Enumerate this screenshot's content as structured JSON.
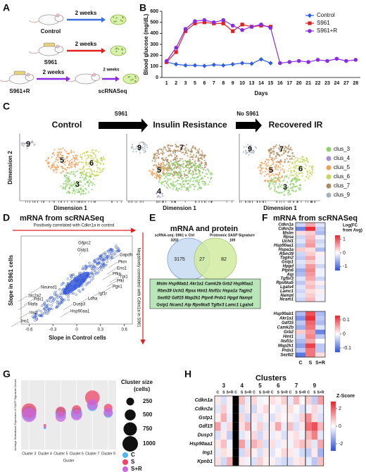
{
  "panel_labels": [
    "A",
    "B",
    "C",
    "D",
    "E",
    "F",
    "G",
    "H"
  ],
  "a": {
    "groups": [
      "Control",
      "S961",
      "S961+R"
    ],
    "arrows": [
      "2 weeks",
      "2 weeks",
      "2 weeks",
      "2 weeks"
    ],
    "endpoint": "scRNASeq"
  },
  "b": {
    "type": "line",
    "y_label": "Blood glucose (mg/dL)",
    "x_label": "Days",
    "categories": [
      "1",
      "2",
      "3",
      "5",
      "6",
      "7",
      "8",
      "9",
      "10",
      "13",
      "14",
      "15",
      "16",
      "17",
      "20",
      "21",
      "22",
      "23",
      "24",
      "27",
      "28"
    ],
    "ylim": [
      0,
      600
    ],
    "yticks": [
      0,
      100,
      200,
      300,
      400,
      500,
      600
    ],
    "legend": "upper right",
    "series": [
      {
        "name": "Control",
        "color": "#2f5fe0",
        "marker": "diamond",
        "values": [
          140,
          120,
          110,
          110,
          105,
          115,
          110,
          120,
          130,
          125,
          165,
          130,
          null,
          null,
          null,
          null,
          null,
          null,
          null,
          null,
          null
        ]
      },
      {
        "name": "S961",
        "color": "#e02020",
        "marker": "square",
        "values": [
          140,
          230,
          420,
          490,
          500,
          490,
          490,
          420,
          480,
          460,
          470,
          460,
          null,
          null,
          null,
          null,
          null,
          null,
          null,
          null,
          null
        ]
      },
      {
        "name": "S961+R",
        "color": "#8a2be2",
        "marker": "circle",
        "values": [
          150,
          270,
          440,
          510,
          520,
          500,
          520,
          470,
          430,
          460,
          480,
          450,
          130,
          140,
          150,
          140,
          160,
          150,
          170,
          150,
          160
        ]
      }
    ]
  },
  "c": {
    "titles": [
      "Control",
      "Insulin Resistance",
      "Recovered IR"
    ],
    "arrows": [
      "S961",
      "No S961"
    ],
    "y_label": "Dimension 2",
    "x_label": "Dimension 1",
    "cluster_labels": [
      [
        "9",
        "5",
        "6",
        "3"
      ],
      [
        "9",
        "7",
        "5",
        "4"
      ],
      [
        "9",
        "7",
        "5",
        "6",
        "3"
      ]
    ],
    "legend": [
      {
        "name": "clus_3",
        "color": "#8fd16a"
      },
      {
        "name": "clus_4",
        "color": "#a58fd8"
      },
      {
        "name": "clus_5",
        "color": "#f0a05a"
      },
      {
        "name": "clus_6",
        "color": "#c9d45a"
      },
      {
        "name": "clus_7",
        "color": "#b08a5c"
      },
      {
        "name": "clus_9",
        "color": "#a6b0ba"
      }
    ]
  },
  "d": {
    "title": "mRNA from scRNASeq",
    "top_note": "Positively correlated with Cdkn1a in control",
    "side_note": "Negatively correlated with Cdkn1a in S961",
    "y_label": "Slope in S961 cells",
    "x_label": "Slope in Control cells",
    "xlim": [
      -0.7,
      0.7
    ],
    "xticks": [
      -0.6,
      -0.3,
      0,
      0.3,
      0.6
    ],
    "genes": [
      "G6pc2",
      "Gstp1",
      "Gapdh",
      "Pkm",
      "Eno1",
      "Pfkp",
      "Tpi1",
      "Pfkl",
      "Pgk1",
      "Igf1r",
      "Ldha",
      "Dusp3",
      "Hsp90aa1",
      "Neurod1",
      "Slc2a2",
      "Pdx1",
      "Mafa",
      "Ins2",
      "Ins1"
    ]
  },
  "e": {
    "title": "mRNA and protein",
    "left_set": "scRNA-seq: S961 v. Ctrl",
    "left_total": 3202,
    "right_set": "Proteomic SASP Signature",
    "right_total": 109,
    "left_only": 3175,
    "overlap": 27,
    "right_only": 82,
    "gene_lines": [
      "Mslm Hsp90ab1 Akr1a1 Camk2b Grb2 Hsp90aa1",
      "Rbm39 Uchl1 Rpsa Hint1 Nsfl1c Hspa1a Tagln2",
      "Sez6l2 Gdf15 Map2k1 Ptpn6 Prdx1 Hpgd Nampt",
      "Gstp1 Ncam1 Aip Rps6ka5 Tgfbr3 Lamc1 Lgals4"
    ]
  },
  "f": {
    "title": "mRNA from scRNASeq",
    "legend_title": [
      "Log(FC",
      "from Avg)"
    ],
    "columns": [
      "C",
      "S",
      "S+R"
    ],
    "top": {
      "lim": [
        -1.3,
        1.3
      ],
      "ticks": [
        1,
        0,
        -1
      ],
      "genes": [
        "Cdkn1a",
        "Cdkn2a",
        "Mslm",
        "Rpsa",
        "Uchl1",
        "Hsp90aa1",
        "Hspa1a",
        "Rbm39",
        "Tagln2",
        "Gstp1",
        "Hpgd",
        "Ptpn6",
        "Aip",
        "Tgfbr3",
        "Rps6ka5",
        "Lgals4",
        "Lamc1",
        "Nampt",
        "Ncam1"
      ],
      "values": [
        [
          -0.3,
          0.5,
          -0.2
        ],
        [
          -0.9,
          1.2,
          -0.4
        ],
        [
          0.2,
          0.3,
          -0.5
        ],
        [
          -0.3,
          0.4,
          -0.1
        ],
        [
          -0.2,
          0.5,
          -0.3
        ],
        [
          -0.4,
          0.6,
          -0.2
        ],
        [
          0.3,
          0.2,
          -0.5
        ],
        [
          -0.3,
          0.3,
          0.1
        ],
        [
          -0.4,
          0.5,
          -0.1
        ],
        [
          -0.2,
          0.3,
          -0.1
        ],
        [
          -0.3,
          0.6,
          -0.3
        ],
        [
          -0.6,
          0.7,
          -0.1
        ],
        [
          -0.5,
          0.6,
          -0.1
        ],
        [
          -0.2,
          0.5,
          -0.3
        ],
        [
          -0.4,
          0.3,
          0.1
        ],
        [
          -0.2,
          0.4,
          -0.2
        ],
        [
          -0.3,
          0.2,
          0.1
        ],
        [
          -0.2,
          0.3,
          -0.1
        ],
        [
          -0.3,
          0.4,
          -0.1
        ]
      ]
    },
    "bottom": {
      "lim": [
        -0.13,
        0.13
      ],
      "ticks": [
        0.1,
        0,
        -0.1
      ],
      "genes": [
        "Hsp90ab1",
        "Akr1a1",
        "Gdf15",
        "Camk2b",
        "Grb2",
        "Hint1",
        "Nsfl1c",
        "Map2k1",
        "Prdx1",
        "Sez6l2"
      ],
      "values": [
        [
          -0.05,
          0.1,
          -0.05
        ],
        [
          -0.08,
          0.12,
          -0.04
        ],
        [
          -0.04,
          0.09,
          -0.05
        ],
        [
          -0.06,
          0.08,
          -0.02
        ],
        [
          0.03,
          0.06,
          -0.09
        ],
        [
          -0.03,
          0.07,
          -0.04
        ],
        [
          -0.05,
          0.05,
          0
        ],
        [
          -0.07,
          0.11,
          -0.04
        ],
        [
          -0.04,
          0.08,
          -0.04
        ],
        [
          -0.1,
          0.08,
          0.02
        ]
      ]
    }
  },
  "g": {
    "type": "bubble",
    "y_label": "Average Normalized Expression of SASP Signature Genes",
    "x_label": "Cluster",
    "categories": [
      "Cluster 3",
      "Cluster 4",
      "Cluster 5",
      "Cluster 6",
      "Cluster 7",
      "Cluster 9"
    ],
    "ylim": [
      0.2,
      1.0
    ],
    "size_legend_title": [
      "Cluster size",
      "(cells)"
    ],
    "size_legend": [
      250,
      500,
      750,
      1000
    ],
    "series": [
      {
        "name": "C",
        "color": "#4fb6ee",
        "values": [
          0.62,
          0.45,
          0.62,
          0.62,
          0.7,
          0.62
        ],
        "sizes": [
          900,
          30,
          500,
          550,
          400,
          350
        ]
      },
      {
        "name": "S",
        "color": "#ee4466",
        "values": [
          0.65,
          0.48,
          0.64,
          0.66,
          0.8,
          0.68
        ],
        "sizes": [
          900,
          30,
          400,
          350,
          900,
          300
        ]
      },
      {
        "name": "S+R",
        "color": "#cc66dd",
        "values": [
          0.6,
          0.46,
          0.58,
          0.6,
          0.72,
          0.63
        ],
        "sizes": [
          850,
          30,
          450,
          500,
          500,
          350
        ]
      }
    ]
  },
  "h": {
    "title": "Clusters",
    "clusters": [
      "3",
      "4",
      "5",
      "6",
      "7",
      "9"
    ],
    "columns": [
      "C",
      "S",
      "S+R"
    ],
    "legend_title": "Z-Score",
    "lim": [
      -2.8,
      2.8
    ],
    "ticks": [
      2,
      0,
      -2
    ],
    "genes": [
      "Cdkn1a",
      "Cdkn2a",
      "Gstp1",
      "Gdf15",
      "Dusp3",
      "Hsp90aa1",
      "Ing1",
      "Kpnb1"
    ],
    "values": [
      [
        0.3,
        -0.5,
        0.2,
        null,
        0.8,
        -0.3,
        0.5,
        -0.2,
        0.1,
        0.4,
        0.2,
        0.6,
        -0.3,
        0.9,
        0.1,
        0.6,
        -0.8,
        1.2
      ],
      [
        -0.4,
        0.6,
        -0.2,
        null,
        -0.5,
        0.3,
        -0.6,
        0.2,
        0.5,
        0.1,
        -0.3,
        0.2,
        0.4,
        0.1,
        -0.5,
        -0.2,
        0.5,
        -0.3
      ],
      [
        0.2,
        1.0,
        -0.3,
        null,
        0.5,
        -0.6,
        0.3,
        -0.4,
        0.2,
        -0.5,
        0.3,
        0.1,
        0.2,
        -0.3,
        0.6,
        1.4,
        0.4,
        -0.5
      ],
      [
        1.2,
        -0.3,
        0.5,
        null,
        0.4,
        1.0,
        -0.2,
        0.6,
        -0.4,
        0.3,
        1.1,
        -0.3,
        0.8,
        -0.5,
        0.3,
        1.8,
        2.2,
        0.9
      ],
      [
        -0.5,
        0.3,
        -0.8,
        null,
        -0.4,
        0.2,
        0.5,
        -0.6,
        0.3,
        -0.3,
        0.2,
        -0.5,
        0.2,
        0.4,
        -0.2,
        0.9,
        1.6,
        -0.4
      ],
      [
        0.3,
        0.8,
        -0.2,
        null,
        1.2,
        -0.4,
        1.0,
        0.6,
        -0.5,
        0.4,
        -0.3,
        0.2,
        -0.2,
        0.5,
        0.8,
        0.6,
        -0.4,
        1.1
      ],
      [
        -0.3,
        0.4,
        0.2,
        null,
        -0.6,
        0.5,
        0.2,
        -0.5,
        0.3,
        -0.4,
        0.1,
        0.5,
        0.3,
        -0.2,
        -0.6,
        -0.8,
        0.3,
        -1.2
      ],
      [
        0.4,
        -0.6,
        1.0,
        null,
        0.3,
        -0.2,
        -0.5,
        0.6,
        0.2,
        0.2,
        -0.4,
        -0.6,
        -0.5,
        0.3,
        0.4,
        -0.3,
        -0.9,
        0.8
      ]
    ]
  }
}
